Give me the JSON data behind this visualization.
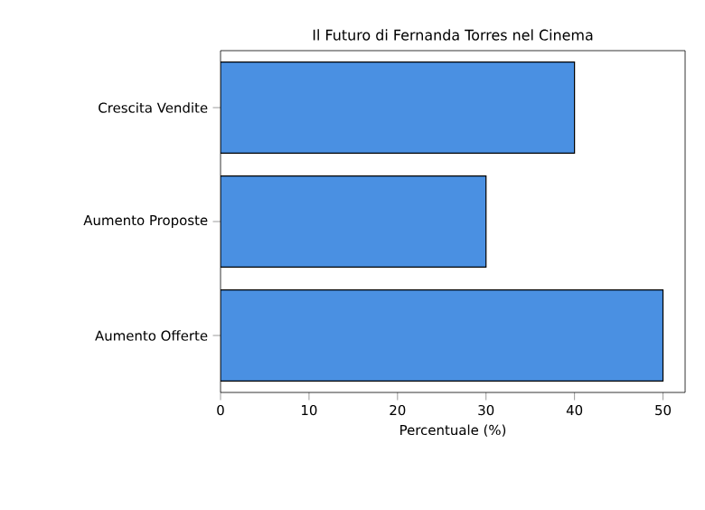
{
  "chart_data": {
    "type": "bar",
    "orientation": "horizontal",
    "title": "Il Futuro di Fernanda Torres nel Cinema",
    "categories": [
      "Crescita Vendite",
      "Aumento Proposte",
      "Aumento Offerte"
    ],
    "values": [
      40,
      30,
      50
    ],
    "color": "#4a90e2",
    "xlabel": "Percentuale (%)",
    "xlim": [
      0,
      52.5
    ],
    "xticks": [
      0,
      10,
      20,
      30,
      40,
      50
    ],
    "grid": false
  }
}
